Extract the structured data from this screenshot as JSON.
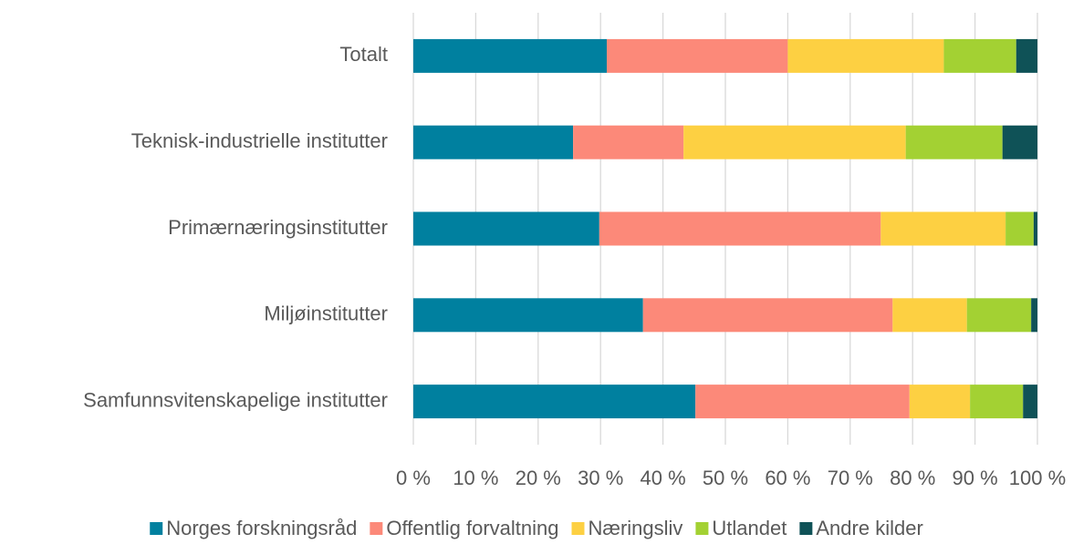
{
  "chart_data": {
    "type": "bar",
    "orientation": "horizontal",
    "stacked": true,
    "categories": [
      "Totalt",
      "Teknisk-industrielle institutter",
      "Primærnæringsinstitutter",
      "Miljøinstitutter",
      "Samfunnsvitenskapelige institutter"
    ],
    "series": [
      {
        "name": "Norges forskningsråd",
        "color": "#00809f",
        "values": [
          31,
          25.6,
          29.8,
          36.8,
          45.2
        ]
      },
      {
        "name": "Offentlig forvaltning",
        "color": "#fc8979",
        "values": [
          29,
          17.7,
          45.1,
          40,
          34.3
        ]
      },
      {
        "name": "Næringsliv",
        "color": "#fdd042",
        "values": [
          25,
          35.6,
          20,
          11.9,
          9.7
        ]
      },
      {
        "name": "Utlandet",
        "color": "#a3d133",
        "values": [
          11.6,
          15.5,
          4.5,
          10.3,
          8.5
        ]
      },
      {
        "name": "Andre kilder",
        "color": "#0f5257",
        "values": [
          3.4,
          5.6,
          0.6,
          1,
          2.3
        ]
      }
    ],
    "xlim": [
      0,
      100
    ],
    "xticks": [
      {
        "value": 0,
        "label": "0 %"
      },
      {
        "value": 10,
        "label": "10 %"
      },
      {
        "value": 20,
        "label": "20 %"
      },
      {
        "value": 30,
        "label": "30 %"
      },
      {
        "value": 40,
        "label": "40 %"
      },
      {
        "value": 50,
        "label": "50 %"
      },
      {
        "value": 60,
        "label": "60 %"
      },
      {
        "value": 70,
        "label": "70 %"
      },
      {
        "value": 80,
        "label": "80 %"
      },
      {
        "value": 90,
        "label": "90 %"
      },
      {
        "value": 100,
        "label": "100 %"
      }
    ],
    "grid": true,
    "legend": "bottom"
  }
}
